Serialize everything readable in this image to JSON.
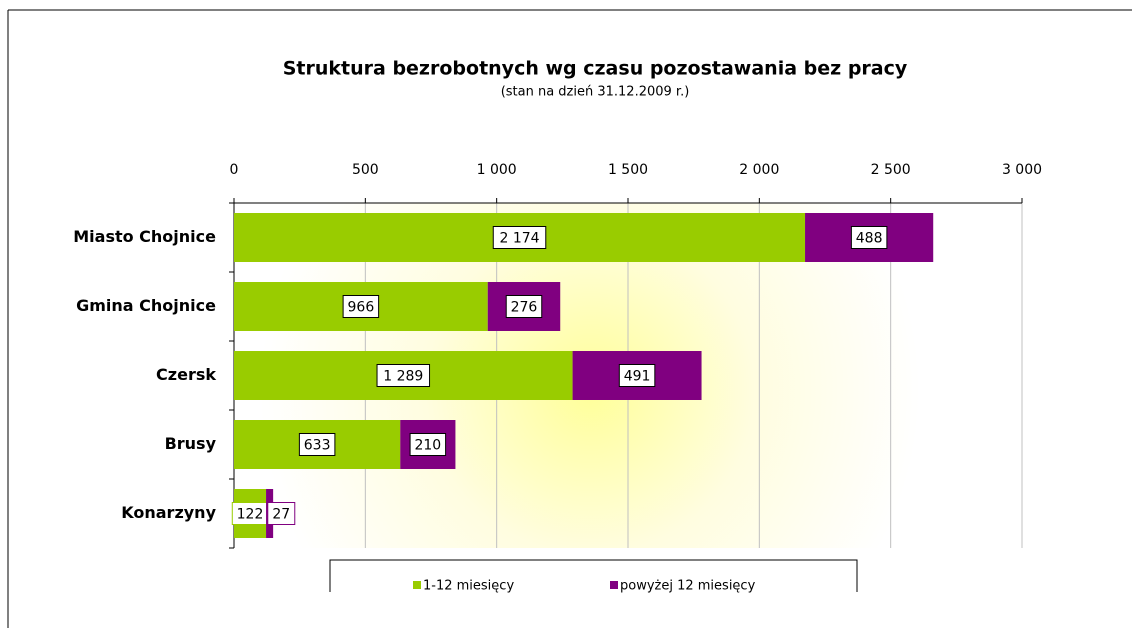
{
  "chart_data": {
    "type": "stacked-bar-horizontal",
    "title": "Struktura bezrobotnych wg czasu pozostawania bez pracy",
    "subtitle": "(stan na dzień 31.12.2009 r.)",
    "categories": [
      "Miasto Chojnice",
      "Gmina Chojnice",
      "Czersk",
      "Brusy",
      "Konarzyny"
    ],
    "series": [
      {
        "name": "1-12 miesięcy",
        "color": "#99cc00",
        "values": [
          2174,
          966,
          1289,
          633,
          122
        ],
        "value_labels": [
          "2 174",
          "966",
          "1 289",
          "633",
          "122"
        ]
      },
      {
        "name": "powyżej 12 miesięcy",
        "color": "#800080",
        "values": [
          488,
          276,
          491,
          210,
          27
        ]
      }
    ],
    "xlim": [
      0,
      3000
    ],
    "xticks": [
      0,
      500,
      {
        "value": 1000,
        "label": "1 000"
      },
      {
        "value": 1500,
        "label": "1 500"
      },
      {
        "value": 2000,
        "label": "2 000"
      },
      {
        "value": 2500,
        "label": "2 500"
      },
      {
        "value": 3000,
        "label": "3 000"
      }
    ],
    "grid": true
  }
}
